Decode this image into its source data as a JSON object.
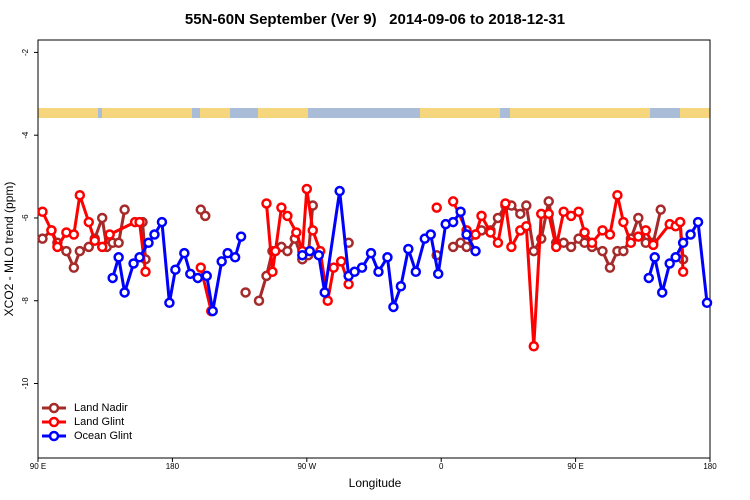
{
  "chart_data": {
    "type": "line",
    "title": "55N-60N September (Ver 9)   2014-09-06 to 2018-12-31",
    "x_label": "Longitude",
    "y_label": "XCO2 - MLO trend (ppm)",
    "xlim": [
      90,
      540
    ],
    "ylim": [
      -11.8,
      -1.7
    ],
    "xticks": [
      {
        "value": 90,
        "label": "90 E"
      },
      180,
      {
        "value": 270,
        "label": "90 W"
      },
      {
        "value": 360,
        "label": "0"
      },
      {
        "value": 450,
        "label": "90 E"
      },
      {
        "value": 540,
        "label": "180"
      }
    ],
    "yticks": [
      -10,
      -8,
      -6,
      -4,
      -2
    ],
    "legend": "bottom-left",
    "series": [
      {
        "name": "Land Nadir",
        "color": "#a52a2a",
        "x": [
          93,
          99,
          103,
          109,
          114,
          118,
          124,
          128,
          133,
          136,
          140,
          144,
          148,
          155,
          160,
          162,
          180,
          199,
          202,
          215,
          229,
          234,
          238,
          243,
          247,
          253,
          257,
          262,
          267,
          271,
          274,
          285,
          298,
          330,
          357,
          362,
          368,
          373,
          377,
          383,
          387,
          393,
          398,
          403,
          407,
          413,
          417,
          422,
          427,
          432,
          437,
          442,
          447,
          452,
          456,
          461,
          468,
          473,
          478,
          482,
          487,
          492,
          497,
          502,
          507,
          515,
          520,
          522
        ],
        "values": [
          -6.5,
          -6.3,
          -6.6,
          -6.8,
          -7.2,
          -6.8,
          -6.7,
          -6.5,
          -6.0,
          -6.7,
          -6.6,
          -6.6,
          -5.8,
          null,
          -6.1,
          -7.0,
          null,
          -5.8,
          -5.95,
          null,
          -7.8,
          null,
          -8.0,
          -7.4,
          -6.8,
          -6.7,
          -6.8,
          -6.5,
          -7.0,
          -6.9,
          -5.7,
          null,
          -6.6,
          null,
          -6.9,
          null,
          -6.7,
          -6.6,
          -6.7,
          -6.4,
          -6.3,
          -6.3,
          -6.0,
          -5.7,
          -5.7,
          -5.9,
          -5.7,
          -6.8,
          -6.5,
          -5.6,
          -6.6,
          -6.6,
          -6.7,
          -6.5,
          -6.6,
          -6.7,
          -6.8,
          -7.2,
          -6.8,
          -6.8,
          -6.5,
          -6.0,
          -6.6,
          -6.6,
          -5.8,
          null,
          -6.1,
          -7.0
        ]
      },
      {
        "name": "Land Glint",
        "color": "#ff0000",
        "x": [
          93,
          99,
          103,
          109,
          114,
          118,
          124,
          128,
          133,
          138,
          155,
          158,
          162,
          180,
          199,
          206,
          230,
          243,
          247,
          249,
          253,
          257,
          263,
          267,
          270,
          274,
          279,
          284,
          288,
          293,
          298,
          330,
          357,
          362,
          368,
          377,
          383,
          387,
          393,
          398,
          403,
          407,
          413,
          417,
          422,
          427,
          432,
          437,
          442,
          447,
          452,
          456,
          461,
          468,
          473,
          478,
          482,
          487,
          492,
          497,
          502,
          513,
          517,
          520,
          522
        ],
        "values": [
          -5.85,
          -6.3,
          -6.7,
          -6.35,
          -6.4,
          -5.45,
          -6.1,
          -6.55,
          -6.7,
          -6.4,
          -6.1,
          -6.1,
          -7.3,
          null,
          -7.2,
          -8.25,
          null,
          -5.65,
          -7.3,
          -6.8,
          -5.75,
          -5.95,
          -6.35,
          -6.8,
          -5.3,
          -6.3,
          -6.8,
          -8.0,
          -7.2,
          -7.05,
          -7.6,
          null,
          -5.75,
          null,
          -5.6,
          -6.3,
          -6.4,
          -5.95,
          -6.35,
          -6.6,
          -5.65,
          -6.7,
          -6.3,
          -6.2,
          -9.1,
          -5.9,
          -5.9,
          -6.7,
          -5.85,
          -5.95,
          -5.85,
          -6.35,
          -6.6,
          -6.3,
          -6.4,
          -5.45,
          -6.1,
          -6.6,
          -6.45,
          -6.3,
          -6.65,
          -6.15,
          -6.2,
          -6.1,
          -7.3
        ]
      },
      {
        "name": "Ocean Glint",
        "color": "#0000ff",
        "x": [
          140,
          144,
          148,
          154,
          158,
          164,
          168,
          173,
          178,
          182,
          188,
          192,
          197,
          203,
          207,
          213,
          217,
          222,
          226,
          250,
          267,
          272,
          278,
          282,
          292,
          298,
          302,
          307,
          313,
          318,
          324,
          328,
          333,
          338,
          343,
          349,
          353,
          358,
          363,
          368,
          373,
          377,
          383,
          440,
          499,
          503,
          508,
          513,
          517,
          522,
          527,
          532,
          538
        ],
        "values": [
          -7.45,
          -6.95,
          -7.8,
          -7.1,
          -6.95,
          -6.6,
          -6.4,
          -6.1,
          -8.05,
          -7.25,
          -6.85,
          -7.35,
          -7.45,
          -7.4,
          -8.25,
          -7.05,
          -6.85,
          -6.95,
          -6.45,
          null,
          -6.9,
          -6.8,
          -6.9,
          -7.8,
          -5.35,
          -7.4,
          -7.3,
          -7.2,
          -6.85,
          -7.3,
          -6.95,
          -8.15,
          -7.65,
          -6.75,
          -7.3,
          -6.5,
          -6.4,
          -7.35,
          -6.15,
          -6.1,
          -5.85,
          -6.4,
          -6.8,
          null,
          -7.45,
          -6.95,
          -7.8,
          -7.1,
          -6.95,
          -6.6,
          -6.4,
          -6.1,
          -8.05
        ]
      }
    ]
  }
}
